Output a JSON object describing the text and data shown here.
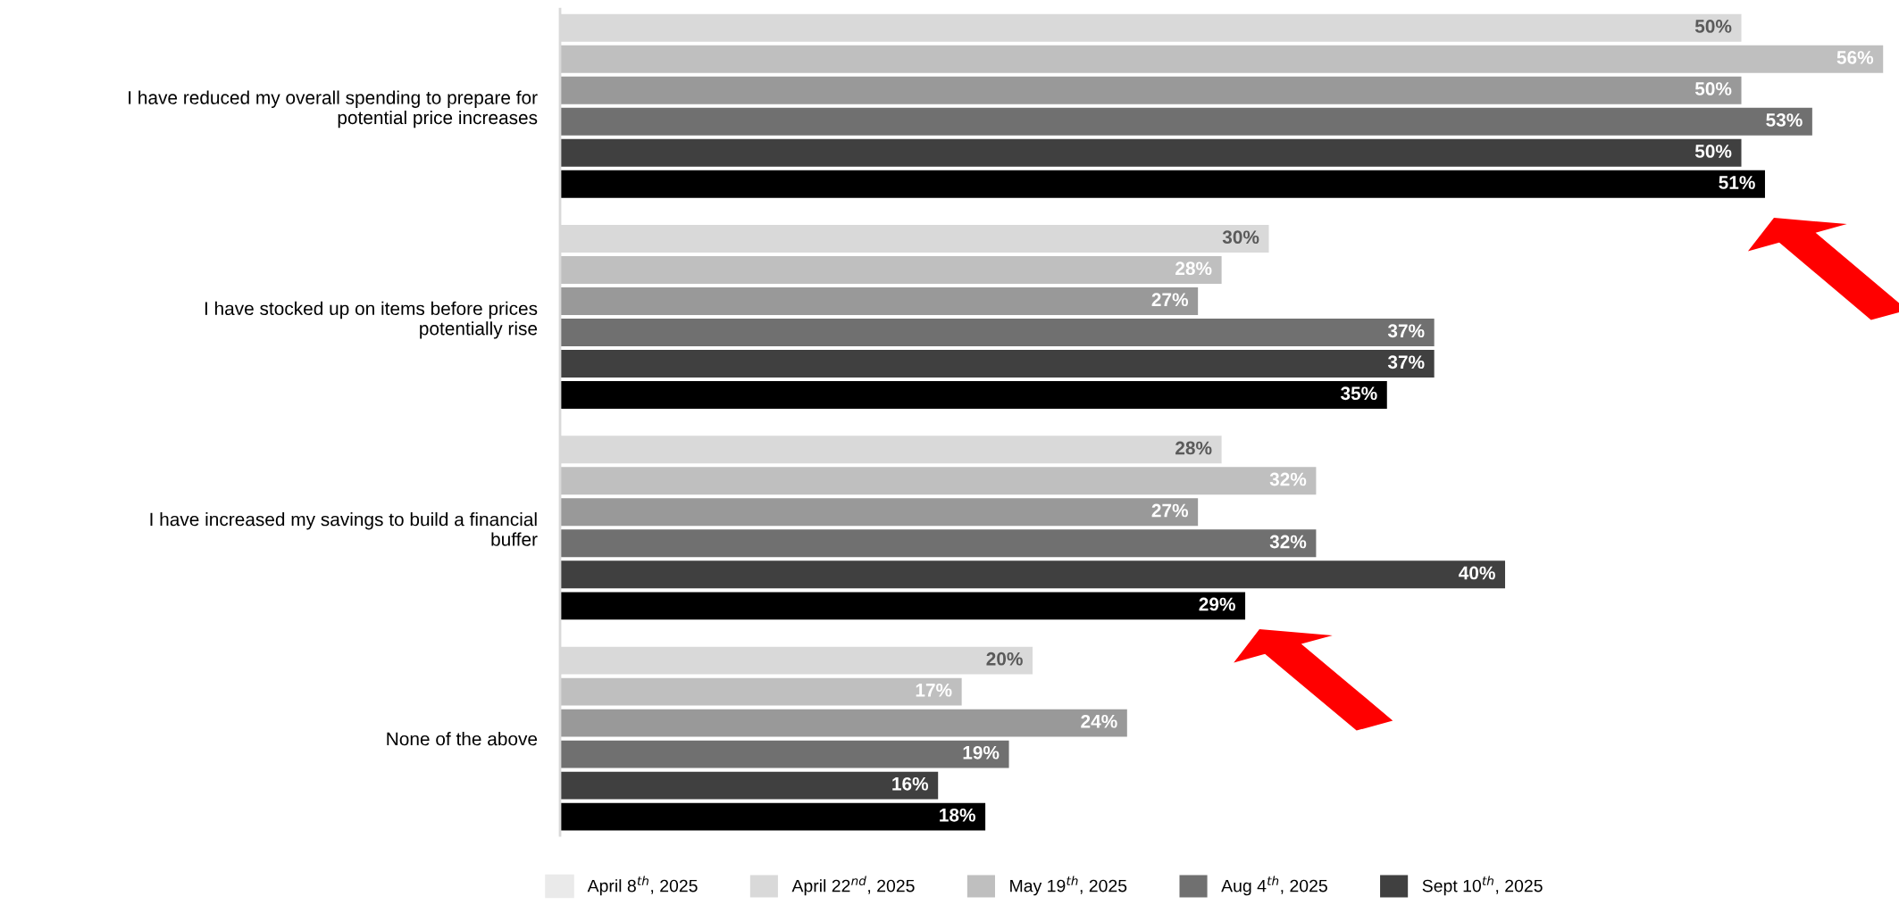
{
  "chart_data": {
    "type": "bar",
    "orientation": "horizontal",
    "legend": "bottom",
    "grid": false,
    "categories": [
      "I have reduced my overall spending to prepare for\npotential price increases",
      "I have stocked up on items before prices\npotentially rise",
      "I have increased my savings to build a financial\nbuffer",
      "None of the above"
    ],
    "series": [
      {
        "name": "April 8$^{th}$, 2025",
        "color": "#eaeaea",
        "values": [
          null,
          null,
          null,
          null
        ]
      },
      {
        "name": "April 22$^{nd}$, 2025",
        "color": "#d9d9d9",
        "values": [
          50,
          30,
          28,
          20
        ],
        "value_labels": [
          "50%",
          "30%",
          "28%",
          "20%"
        ]
      },
      {
        "name": "May 19$^{th}$, 2025",
        "color": "#bfbfbf",
        "values": [
          56,
          28,
          32,
          17
        ],
        "value_labels": [
          "56%",
          "28%",
          "32%",
          "17%"
        ]
      },
      {
        "color": "#999999",
        "values": [
          50,
          27,
          27,
          24
        ],
        "value_labels": [
          "50%",
          "27%",
          "27%",
          "24%"
        ]
      },
      {
        "name": "Aug 4$^{th}$, 2025",
        "color": "#707070",
        "values": [
          53,
          37,
          32,
          19
        ],
        "value_labels": [
          "53%",
          "37%",
          "32%",
          "19%"
        ]
      },
      {
        "name": "Sept 10$^{th}$, 2025",
        "color": "#404040",
        "values": [
          50,
          37,
          40,
          16
        ],
        "value_labels": [
          "50%",
          "37%",
          "40%",
          "16%"
        ]
      },
      {
        "color": "#000000",
        "values": [
          51,
          35,
          29,
          18
        ],
        "value_labels": [
          "51%",
          "35%",
          "29%",
          "18%"
        ]
      }
    ]
  }
}
